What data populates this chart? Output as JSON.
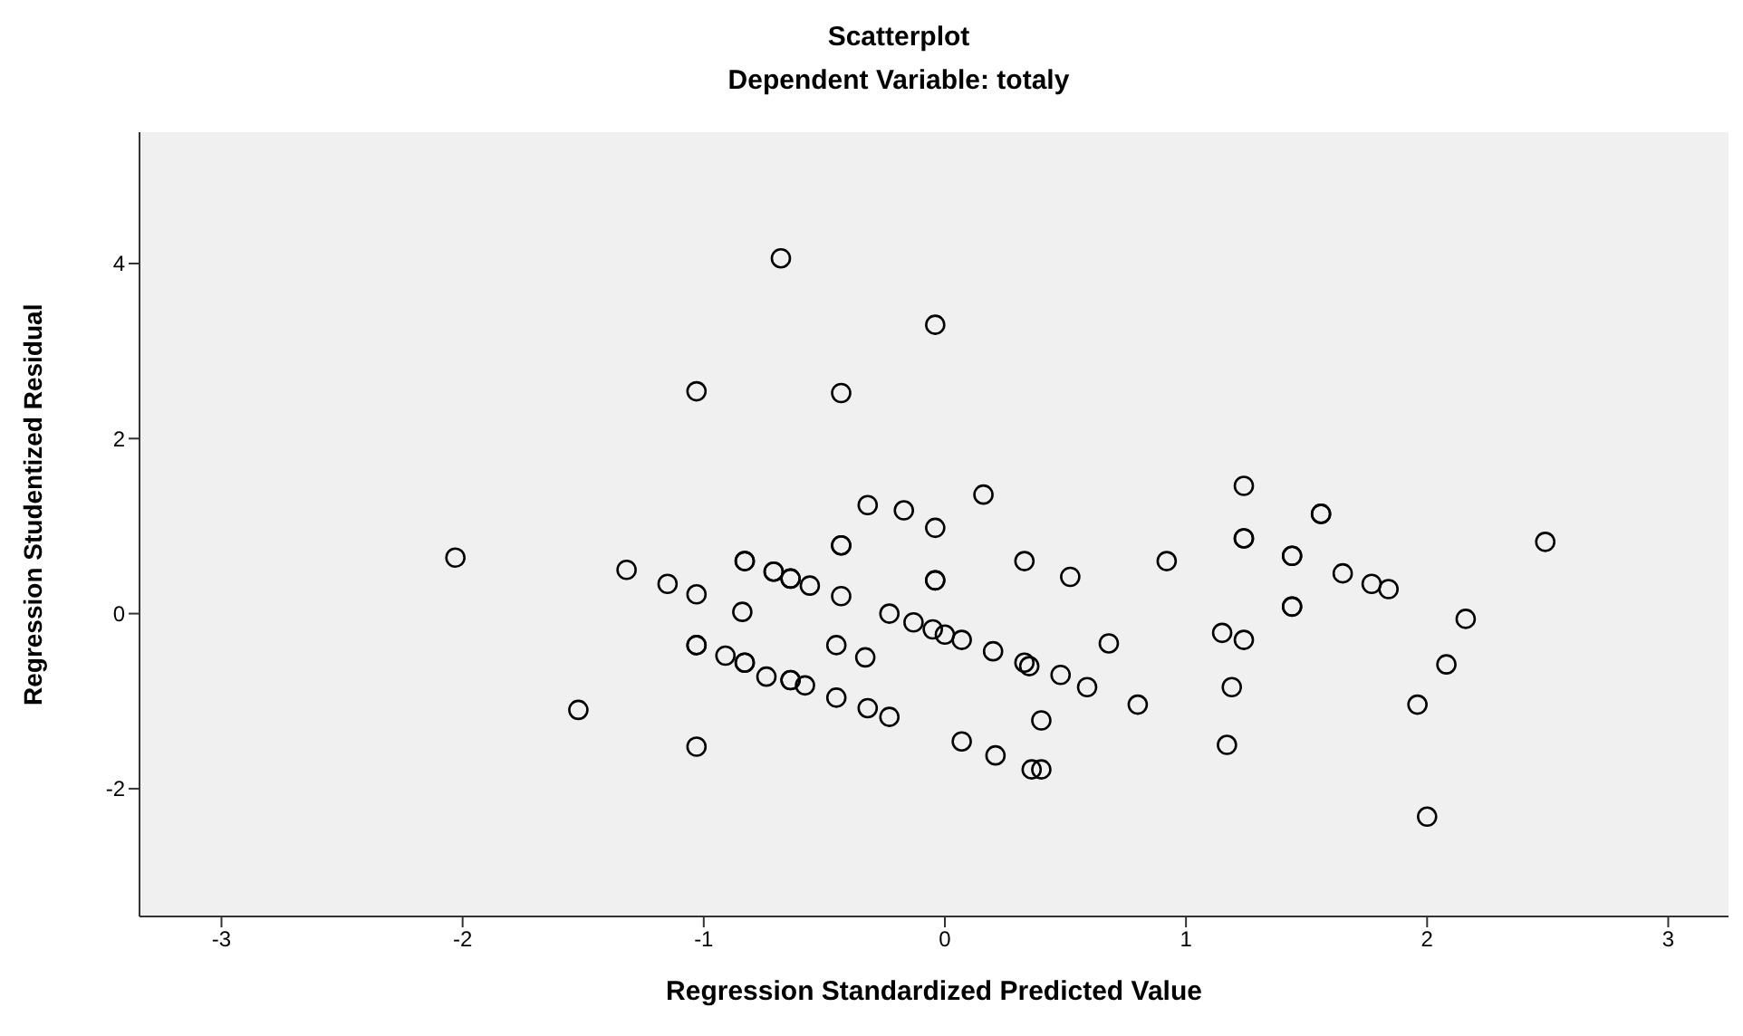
{
  "chart_data": {
    "type": "scatter",
    "title": "Scatterplot",
    "subtitle": "Dependent Variable: totaly",
    "xlabel": "Regression Standardized Predicted Value",
    "ylabel": "Regression Studentized Residual",
    "xlim": [
      -3.34,
      3.25
    ],
    "ylim": [
      -3.46,
      5.5
    ],
    "xticks": [
      -3,
      -2,
      -1,
      0,
      1,
      2,
      3
    ],
    "yticks": [
      -2,
      0,
      2,
      4
    ],
    "grid": false,
    "legend": false,
    "marker": "circle",
    "series": [
      {
        "color": "#000000",
        "x": [
          -0.68,
          -0.04,
          -1.03,
          -0.43,
          0.16,
          -0.32,
          -0.17,
          -0.04,
          -0.43,
          -0.43,
          -2.03,
          0.33,
          -1.32,
          -0.83,
          -0.83,
          -0.71,
          -0.71,
          -0.64,
          -0.64,
          -0.56,
          -1.15,
          -1.03,
          -0.43,
          -0.04,
          -0.04,
          0.52,
          -0.84,
          -0.23,
          -0.13,
          -0.05,
          0.0,
          0.07,
          0.2,
          0.33,
          0.35,
          0.48,
          -1.03,
          -1.03,
          -0.91,
          -0.83,
          -0.83,
          -0.45,
          -0.33,
          -0.74,
          -0.64,
          -0.64,
          -0.58,
          -0.45,
          -0.32,
          -0.23,
          -1.52,
          -1.03,
          0.07,
          0.21,
          0.36,
          0.4,
          0.4,
          1.24,
          1.56,
          1.56,
          1.24,
          1.24,
          2.49,
          1.44,
          1.44,
          0.92,
          1.65,
          1.77,
          1.84,
          1.44,
          1.44,
          2.16,
          1.15,
          1.24,
          0.68,
          2.08,
          1.19,
          0.8,
          1.96,
          1.17,
          2.0,
          0.59
        ],
        "values": [
          4.06,
          3.3,
          2.54,
          2.52,
          1.36,
          1.24,
          1.18,
          0.98,
          0.78,
          0.78,
          0.64,
          0.6,
          0.5,
          0.6,
          0.6,
          0.48,
          0.48,
          0.4,
          0.4,
          0.32,
          0.34,
          0.22,
          0.2,
          0.38,
          0.38,
          0.42,
          0.02,
          0.0,
          -0.1,
          -0.18,
          -0.24,
          -0.3,
          -0.43,
          -0.56,
          -0.6,
          -0.7,
          -0.36,
          -0.36,
          -0.48,
          -0.56,
          -0.56,
          -0.36,
          -0.5,
          -0.72,
          -0.76,
          -0.76,
          -0.82,
          -0.96,
          -1.08,
          -1.18,
          -1.1,
          -1.52,
          -1.46,
          -1.62,
          -1.78,
          -1.78,
          -1.22,
          1.46,
          1.14,
          1.14,
          0.86,
          0.86,
          0.82,
          0.66,
          0.66,
          0.6,
          0.46,
          0.34,
          0.28,
          0.08,
          0.08,
          -0.06,
          -0.22,
          -0.3,
          -0.34,
          -0.58,
          -0.84,
          -1.04,
          -1.04,
          -1.5,
          -2.32,
          -0.84
        ]
      }
    ]
  }
}
